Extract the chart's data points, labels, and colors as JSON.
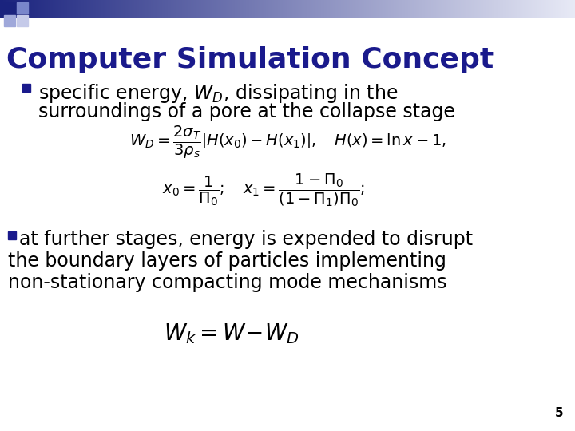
{
  "title": "Computer Simulation Concept",
  "title_color": "#1a1a8c",
  "title_fontsize": 26,
  "bg_color": "#ffffff",
  "bullet_color": "#1a1a8c",
  "text_color": "#000000",
  "bullet1_line1": "specific energy, $W_D$, dissipating in the",
  "bullet1_line2": "surroundings of a pore at the collapse stage",
  "formula1": "$W_D = \\dfrac{2\\sigma_T}{3\\rho_s}\\left|H(x_0)-H(x_1)\\right|, \\quad H(x)= \\ln x - 1,$",
  "formula2": "$x_0 = \\dfrac{1}{\\Pi_0}; \\quad x_1 = \\dfrac{1-\\Pi_0}{(1-\\Pi_1)\\Pi_0};$",
  "bullet2_line1": "at further stages, energy is expended to disrupt",
  "bullet2_line2": "the boundary layers of particles implementing",
  "bullet2_line3": "non-stationary compacting mode mechanisms",
  "formula3": "$W_k=W\\!-\\!W_D$",
  "page_number": "5",
  "font_size_body": 17,
  "font_size_formula": 14,
  "header_gradient_left": "#1a237e",
  "header_gradient_right": "#e8eaf6",
  "sq1_color": "#1a237e",
  "sq2_color": "#7986cb",
  "sq3_color": "#9fa8da",
  "sq4_color": "#c5cae9"
}
